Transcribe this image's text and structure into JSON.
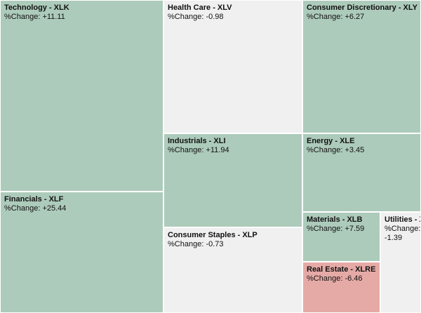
{
  "chart_data": {
    "type": "treemap",
    "change_label": "%Change:",
    "colors": {
      "positive": "#adcbbb",
      "slightly_negative": "#f0f0f0",
      "negative": "#e6aaa6"
    },
    "items": [
      {
        "sector": "Technology - XLK",
        "change": "+11.11"
      },
      {
        "sector": "Financials - XLF",
        "change": "+25.44"
      },
      {
        "sector": "Health Care - XLV",
        "change": "-0.98"
      },
      {
        "sector": "Industrials - XLI",
        "change": "+11.94"
      },
      {
        "sector": "Consumer Staples - XLP",
        "change": "-0.73"
      },
      {
        "sector": "Consumer Discretionary - XLY",
        "change": "+6.27"
      },
      {
        "sector": "Energy - XLE",
        "change": "+3.45"
      },
      {
        "sector": "Materials - XLB",
        "change": "+7.59"
      },
      {
        "sector": "Real Estate - XLRE",
        "change": "-6.46"
      },
      {
        "sector": "Utilities - XLU",
        "change": "-1.39"
      }
    ]
  }
}
